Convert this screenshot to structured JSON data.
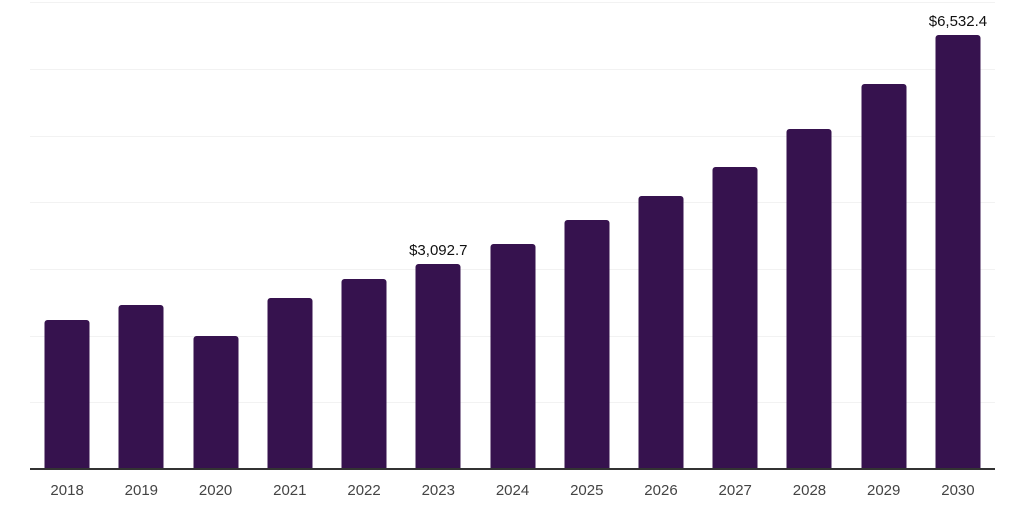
{
  "chart_data": {
    "type": "bar",
    "title": "",
    "xlabel": "",
    "ylabel": "",
    "categories": [
      "2018",
      "2019",
      "2020",
      "2021",
      "2022",
      "2023",
      "2024",
      "2025",
      "2026",
      "2027",
      "2028",
      "2029",
      "2030"
    ],
    "values": [
      2250,
      2475,
      2010,
      2580,
      2870,
      3092.7,
      3390,
      3745,
      4110,
      4550,
      5120,
      5785,
      6532.4
    ],
    "value_labels": [
      "",
      "",
      "",
      "",
      "",
      "$3,092.7",
      "",
      "",
      "",
      "",
      "",
      "",
      "$6,532.4"
    ],
    "ylim": [
      0,
      7000
    ],
    "gridline_step": 1000,
    "grid": "horizontal",
    "legend": "none",
    "bar_color": "#36124E",
    "gridline_color": "#F2F2F2",
    "axis_line_color": "#333333",
    "value_label_color": "#111111",
    "tick_label_color": "#444444"
  }
}
